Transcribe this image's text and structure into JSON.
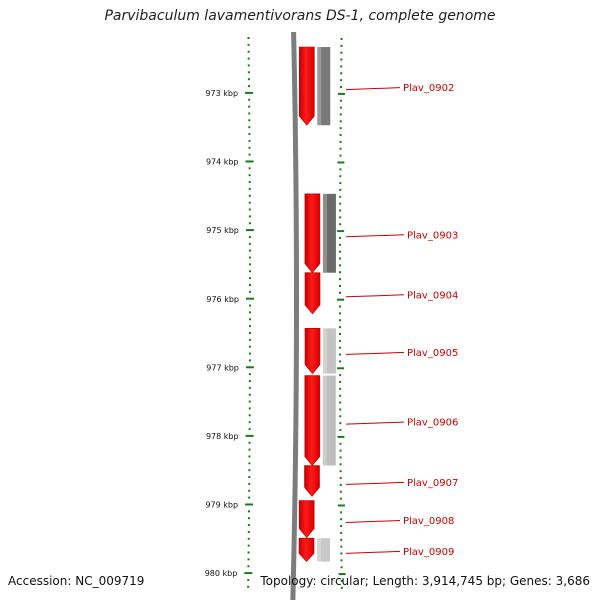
{
  "title": "Parvibaculum lavamentivorans DS-1, complete genome",
  "footer": {
    "accession": "Accession: NC_009719",
    "summary": "Topology: circular; Length: 3,914,745 bp; Genes: 3,686"
  },
  "kbp_labels": [
    {
      "kbp": 973,
      "label": "973 kbp"
    },
    {
      "kbp": 974,
      "label": "974 kbp"
    },
    {
      "kbp": 975,
      "label": "975 kbp"
    },
    {
      "kbp": 976,
      "label": "976 kbp"
    },
    {
      "kbp": 977,
      "label": "977 kbp"
    },
    {
      "kbp": 978,
      "label": "978 kbp"
    },
    {
      "kbp": 979,
      "label": "979 kbp"
    },
    {
      "kbp": 980,
      "label": "980 kbp"
    }
  ],
  "genes": [
    {
      "name": "Plav_0902",
      "start_kbp": 972.33,
      "end_kbp": 973.47,
      "shade": "#7a7a7a",
      "lane_shift": 0
    },
    {
      "name": "Plav_0903",
      "start_kbp": 974.47,
      "end_kbp": 975.62,
      "shade": "#6a6a6a",
      "lane_shift": 1
    },
    {
      "name": "Plav_0904",
      "start_kbp": 975.62,
      "end_kbp": 976.22,
      "shade": null,
      "lane_shift": 1
    },
    {
      "name": "Plav_0905",
      "start_kbp": 976.43,
      "end_kbp": 977.09,
      "shade": "#c4c4c4",
      "lane_shift": 1
    },
    {
      "name": "Plav_0906",
      "start_kbp": 977.12,
      "end_kbp": 978.43,
      "shade": "#bdbdbd",
      "lane_shift": 1
    },
    {
      "name": "Plav_0907",
      "start_kbp": 978.43,
      "end_kbp": 978.88,
      "shade": null,
      "lane_shift": 1
    },
    {
      "name": "Plav_0908",
      "start_kbp": 978.94,
      "end_kbp": 979.48,
      "shade": null,
      "lane_shift": 0
    },
    {
      "name": "Plav_0909",
      "start_kbp": 979.49,
      "end_kbp": 979.83,
      "shade": "#c8c8c8",
      "lane_shift": 0
    }
  ],
  "colors": {
    "gene": "#ff0000",
    "gene_dark": "#c00000",
    "scale_tick": "#1a7a1a",
    "backbone": "#7d7d7d",
    "label_line": "#cc0000"
  }
}
